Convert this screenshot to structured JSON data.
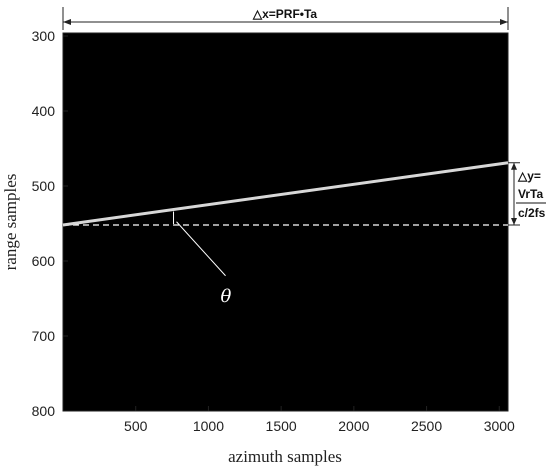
{
  "chart_data": {
    "type": "line",
    "title": "",
    "xlabel": "azimuth samples",
    "ylabel": "range samples",
    "xlim": [
      0,
      3060
    ],
    "ylim": [
      800,
      296
    ],
    "y_inverted": true,
    "background": "#000000",
    "x_ticks": [
      500,
      1000,
      1500,
      2000,
      2500,
      3000
    ],
    "x_tick_labels": [
      "500",
      "1000",
      "1500",
      "2000",
      "2500",
      "3000"
    ],
    "y_ticks": [
      300,
      400,
      500,
      600,
      700,
      800
    ],
    "y_tick_labels": [
      "300",
      "400",
      "500",
      "600",
      "700",
      "800"
    ],
    "series": [
      {
        "name": "",
        "color": "#d8d8d8",
        "x": [
          0,
          3060
        ],
        "y": [
          552,
          469
        ]
      }
    ],
    "reference_line": {
      "style": "dashed",
      "color": "#ffffff",
      "y": 552,
      "x": [
        0,
        3060
      ]
    },
    "annotations": {
      "delta_x": "△x=PRF•Ta",
      "delta_y_line1": "△y=",
      "delta_y_line2": "VrTa",
      "delta_y_line3": "c/2fs",
      "theta": "θ",
      "theta_arc_x": 760
    }
  }
}
